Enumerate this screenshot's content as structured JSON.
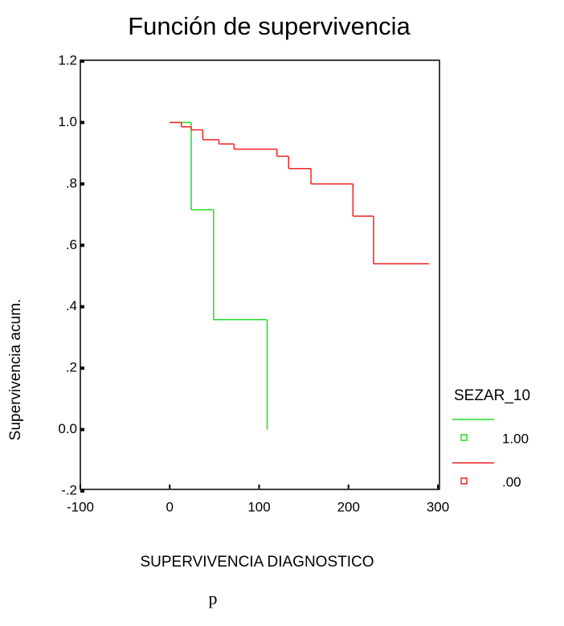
{
  "chart_data": {
    "type": "step",
    "title": "Función de supervivencia",
    "x_label": "SUPERVIVENCIA DIAGNOSTICO",
    "y_label": "Supervivencia acum.",
    "footnote": "p",
    "legend_title": "SEZAR_10",
    "xlim": [
      -100,
      300
    ],
    "xticks": [
      -100,
      0,
      100,
      200,
      300
    ],
    "ylim": [
      -0.2,
      1.2
    ],
    "yticks": [
      {
        "value": -0.2,
        "label": "-.2"
      },
      {
        "value": 0,
        "label": "0.0"
      },
      {
        "value": 0.2,
        "label": ".2"
      },
      {
        "value": 0.4,
        "label": ".4"
      },
      {
        "value": 0.6,
        "label": ".6"
      },
      {
        "value": 0.8,
        "label": ".8"
      },
      {
        "value": 1.0,
        "label": "1.0"
      },
      {
        "value": 1.2,
        "label": "1.2"
      }
    ],
    "series": [
      {
        "name": "1.00",
        "color": "#22dd22",
        "x": [
          0,
          24,
          49,
          109
        ],
        "values": [
          1.0,
          0.716,
          0.358,
          0
        ]
      },
      {
        "name": ".00",
        "color": "#ee2222",
        "x": [
          0,
          13,
          24,
          37,
          55,
          72,
          120,
          133,
          158,
          205,
          228,
          290
        ],
        "values": [
          1.0,
          0.986,
          0.976,
          0.944,
          0.93,
          0.913,
          0.89,
          0.85,
          0.8,
          0.695,
          0.54,
          0.54
        ]
      }
    ]
  }
}
